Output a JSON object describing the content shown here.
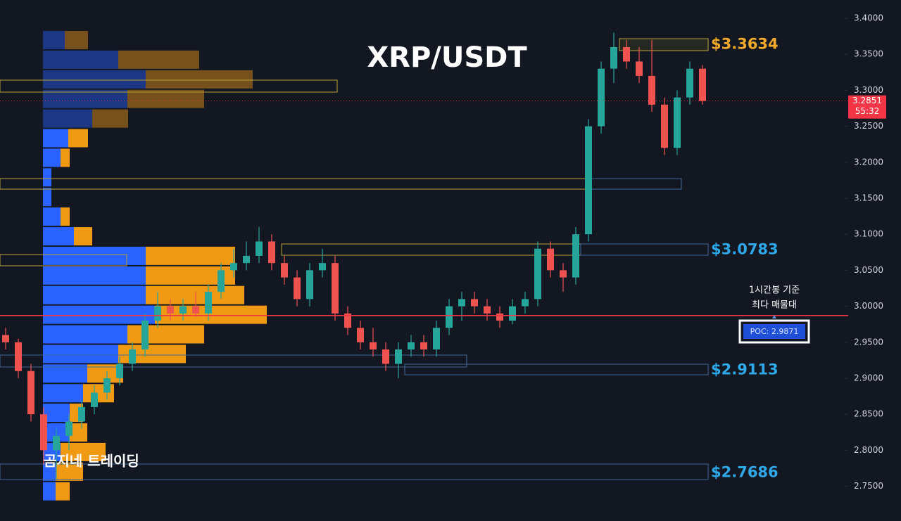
{
  "chart_data": {
    "type": "candlestick",
    "title": "XRP/USDT",
    "watermark": "곰지네 트레이딩",
    "ylim": [
      2.7017,
      3.4254
    ],
    "yticks": [
      {
        "value": 2.75,
        "label": "2.7500"
      },
      {
        "value": 2.8,
        "label": "2.8000"
      },
      {
        "value": 2.85,
        "label": "2.8500"
      },
      {
        "value": 2.9,
        "label": "2.9000"
      },
      {
        "value": 2.95,
        "label": "2.9500"
      },
      {
        "value": 3.0,
        "label": "3.0000"
      },
      {
        "value": 3.05,
        "label": "3.0500"
      },
      {
        "value": 3.1,
        "label": "3.1000"
      },
      {
        "value": 3.15,
        "label": "3.1500"
      },
      {
        "value": 3.2,
        "label": "3.2000"
      },
      {
        "value": 3.25,
        "label": "3.2500"
      },
      {
        "value": 3.3,
        "label": "3.3000"
      },
      {
        "value": 3.35,
        "label": "3.3500"
      },
      {
        "value": 3.4,
        "label": "3.4000"
      }
    ],
    "up_color": "#26a69a",
    "down_color": "#ef5350",
    "series": {
      "open": [
        2.96,
        2.95,
        2.91,
        2.85,
        2.8,
        2.82,
        2.84,
        2.86,
        2.88,
        2.9,
        2.92,
        2.94,
        2.98,
        3.0,
        2.99,
        3.0,
        2.99,
        3.02,
        3.05,
        3.06,
        3.07,
        3.09,
        3.06,
        3.04,
        3.01,
        3.05,
        3.06,
        2.99,
        2.97,
        2.95,
        2.94,
        2.92,
        2.94,
        2.95,
        2.94,
        2.97,
        3.0,
        3.01,
        3.0,
        2.99,
        2.98,
        3.0,
        3.01,
        3.08,
        3.05,
        3.04,
        3.1,
        3.25,
        3.33,
        3.36,
        3.34,
        3.32,
        3.28,
        3.22,
        3.29,
        3.33
      ],
      "high": [
        2.97,
        2.955,
        2.92,
        2.86,
        2.83,
        2.85,
        2.87,
        2.89,
        2.91,
        2.93,
        2.95,
        2.99,
        3.02,
        3.01,
        3.01,
        3.02,
        3.03,
        3.06,
        3.08,
        3.09,
        3.11,
        3.1,
        3.07,
        3.05,
        3.06,
        3.08,
        3.07,
        3.0,
        2.98,
        2.97,
        2.95,
        2.95,
        2.96,
        2.96,
        2.98,
        3.01,
        3.02,
        3.02,
        3.01,
        3.0,
        3.01,
        3.02,
        3.09,
        3.09,
        3.06,
        3.11,
        3.26,
        3.34,
        3.38,
        3.37,
        3.36,
        3.37,
        3.29,
        3.3,
        3.34,
        3.335
      ],
      "low": [
        2.94,
        2.9,
        2.84,
        2.78,
        2.76,
        2.8,
        2.83,
        2.85,
        2.87,
        2.89,
        2.91,
        2.93,
        2.97,
        2.98,
        2.98,
        2.985,
        2.98,
        3.01,
        3.04,
        3.05,
        3.06,
        3.05,
        3.03,
        3.0,
        3.0,
        3.04,
        2.98,
        2.96,
        2.94,
        2.93,
        2.91,
        2.9,
        2.93,
        2.93,
        2.93,
        2.96,
        2.98,
        2.99,
        2.98,
        2.97,
        2.975,
        2.99,
        3.0,
        3.04,
        3.02,
        3.03,
        3.09,
        3.24,
        3.31,
        3.33,
        3.31,
        3.27,
        3.21,
        3.21,
        3.28,
        3.28
      ],
      "close": [
        2.95,
        2.91,
        2.85,
        2.8,
        2.82,
        2.84,
        2.86,
        2.88,
        2.9,
        2.92,
        2.94,
        2.98,
        3.0,
        2.99,
        3.0,
        2.99,
        3.02,
        3.05,
        3.06,
        3.07,
        3.09,
        3.06,
        3.04,
        3.01,
        3.05,
        3.06,
        2.99,
        2.97,
        2.95,
        2.94,
        2.92,
        2.94,
        2.95,
        2.94,
        2.97,
        3.0,
        3.01,
        3.0,
        2.99,
        2.98,
        3.0,
        3.01,
        3.08,
        3.05,
        3.04,
        3.1,
        3.25,
        3.33,
        3.36,
        3.34,
        3.32,
        3.28,
        3.22,
        3.29,
        3.33,
        3.2851
      ]
    },
    "levels": [
      {
        "value": 3.3634,
        "label": "$3.3634",
        "color": "#f0a92b"
      },
      {
        "value": 3.0783,
        "label": "$3.0783",
        "color": "#2ea8e8"
      },
      {
        "value": 2.9113,
        "label": "$2.9113",
        "color": "#2ea8e8"
      },
      {
        "value": 2.7686,
        "label": "$2.7686",
        "color": "#2ea8e8"
      }
    ],
    "poc": {
      "value": 2.9871,
      "label": "POC: 2.9871",
      "color": "#f23645"
    },
    "annotation": [
      "1시간봉 기준",
      "최다 매물대"
    ],
    "last_price": {
      "value": 3.2851,
      "countdown": "55:32",
      "color": "#f23645"
    },
    "volume_profile": {
      "price": [
        3.3697,
        3.3425,
        3.3152,
        3.288,
        3.2607,
        3.2335,
        3.2062,
        3.179,
        3.1517,
        3.1245,
        3.0972,
        3.07,
        3.0427,
        3.0155,
        2.9882,
        2.961,
        2.9337,
        2.9065,
        2.8792,
        2.852,
        2.8247,
        2.7975,
        2.7702,
        2.743
      ],
      "buy": [
        31,
        107,
        146,
        120,
        70,
        36,
        25,
        12,
        12,
        25,
        44,
        146,
        146,
        146,
        159,
        120,
        107,
        63,
        57,
        38,
        38,
        25,
        18,
        18
      ],
      "sell": [
        33,
        115,
        152,
        109,
        51,
        28,
        13,
        0,
        0,
        13,
        26,
        127,
        127,
        140,
        159,
        109,
        96,
        51,
        44,
        19,
        25,
        64,
        39,
        20
      ],
      "buy_color": "#2962ff",
      "sell_color": "#f09a14"
    }
  }
}
